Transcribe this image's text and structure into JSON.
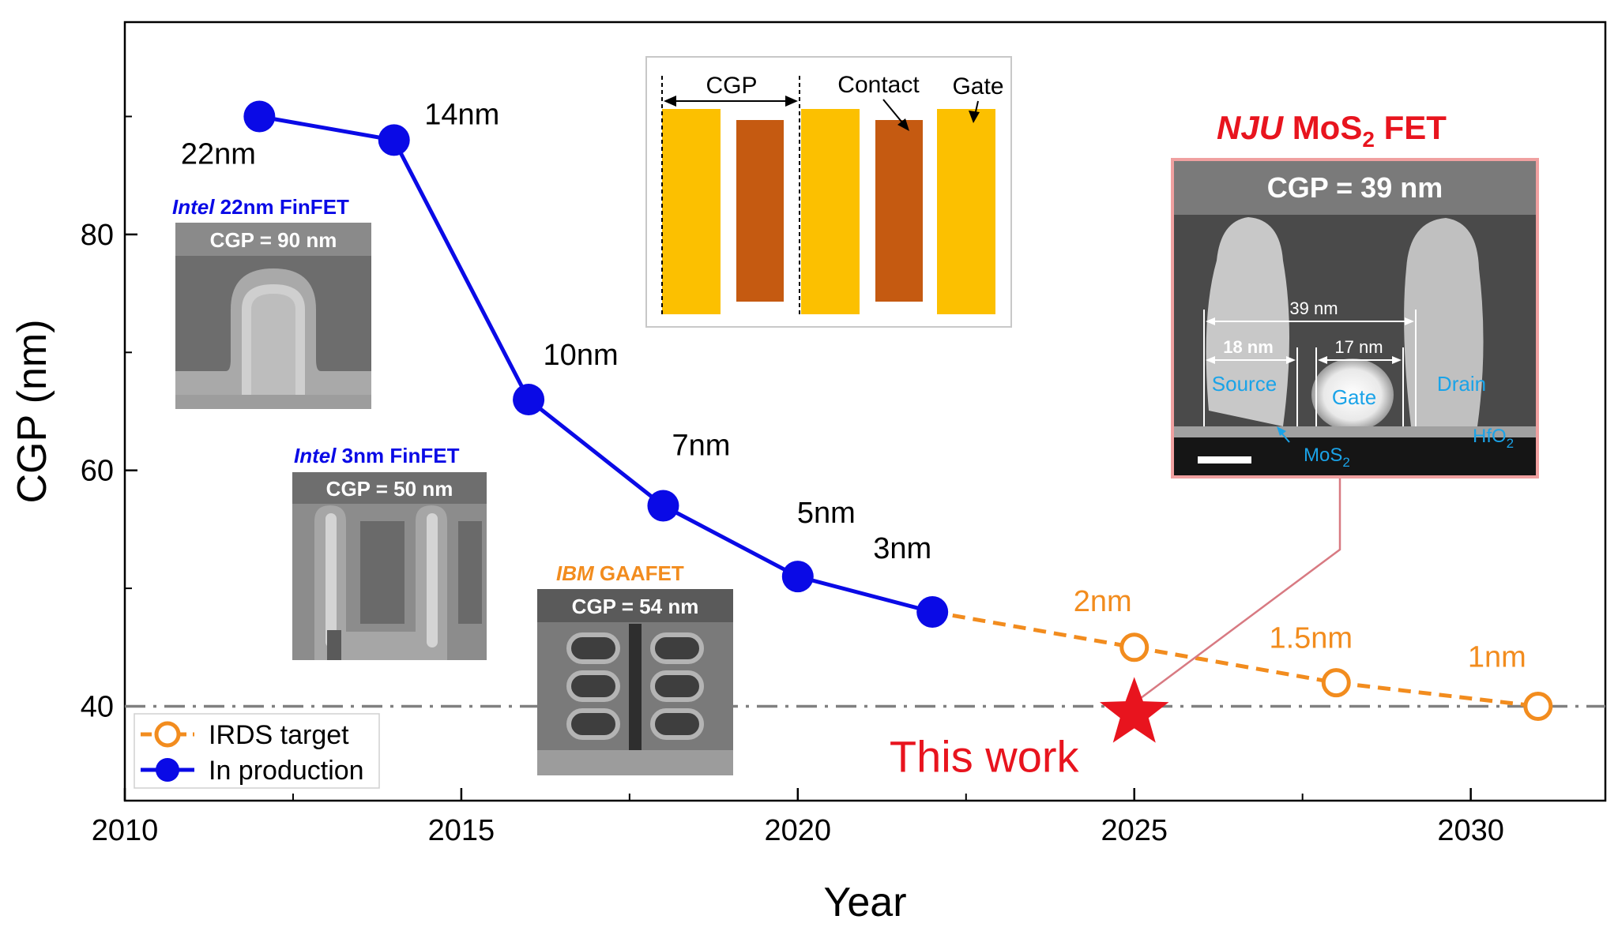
{
  "chart_data": {
    "type": "line",
    "xlabel": "Year",
    "ylabel": "CGP (nm)",
    "xlim": [
      2010,
      2032
    ],
    "ylim": [
      32,
      98
    ],
    "x_ticks": [
      2010,
      2015,
      2020,
      2025,
      2030
    ],
    "x_minor_ticks": [
      2012.5,
      2017.5,
      2022.5,
      2027.5
    ],
    "y_ticks": [
      40,
      60,
      80
    ],
    "y_minor_ticks": [
      50,
      70,
      90
    ],
    "grid": false,
    "legend_position": "bottom-left",
    "reference_line": {
      "y": 40,
      "style": "dash-dot",
      "color": "#808080"
    },
    "series": [
      {
        "name": "In production",
        "color": "#0a0ae6",
        "marker": "filled-circle",
        "line": "solid",
        "points": [
          {
            "x": 2012,
            "y": 90,
            "label": "22nm"
          },
          {
            "x": 2014,
            "y": 88,
            "label": "14nm"
          },
          {
            "x": 2016,
            "y": 66,
            "label": "10nm"
          },
          {
            "x": 2018,
            "y": 57,
            "label": "7nm"
          },
          {
            "x": 2020,
            "y": 51,
            "label": "5nm"
          },
          {
            "x": 2022,
            "y": 48,
            "label": "3nm"
          }
        ]
      },
      {
        "name": "IRDS target",
        "color": "#f28c1e",
        "marker": "open-circle",
        "line": "dashed",
        "points": [
          {
            "x": 2022,
            "y": 48,
            "label": ""
          },
          {
            "x": 2025,
            "y": 45,
            "label": "2nm"
          },
          {
            "x": 2028,
            "y": 42,
            "label": "1.5nm"
          },
          {
            "x": 2031,
            "y": 40,
            "label": "1nm"
          }
        ]
      }
    ],
    "highlight": {
      "x": 2025,
      "y": 39,
      "label": "This work",
      "marker": "star",
      "color": "#e8141e"
    }
  },
  "insets": {
    "intel22": {
      "brand": "Intel",
      "rest": " 22nm FinFET",
      "cgp": "CGP = 90 nm"
    },
    "intel3": {
      "brand": "Intel",
      "rest": " 3nm FinFET",
      "cgp": "CGP = 50 nm"
    },
    "ibm": {
      "brand": "IBM",
      "rest": "  GAAFET",
      "cgp": "CGP = 54 nm"
    },
    "schematic": {
      "cgp": "CGP",
      "contact": "Contact",
      "gate": "Gate"
    },
    "nju": {
      "brand": "NJU",
      "rest": "  MoS",
      "sub": "2",
      "tail": " FET",
      "cgp": "CGP = 39 nm",
      "dim_total": "39 nm",
      "dim_source": "18 nm",
      "dim_gate": "17 nm",
      "source": "Source",
      "gate": "Gate",
      "drain": "Drain",
      "mos2": "MoS",
      "mos2_sub": "2",
      "hfo2": "HfO",
      "hfo2_sub": "2"
    }
  },
  "colors": {
    "production": "#0a0ae6",
    "irds": "#f28c1e",
    "highlight": "#e8141e",
    "gate_yellow": "#fcc000",
    "contact_brown": "#c55a11",
    "label_blue": "#1aa3e8"
  }
}
